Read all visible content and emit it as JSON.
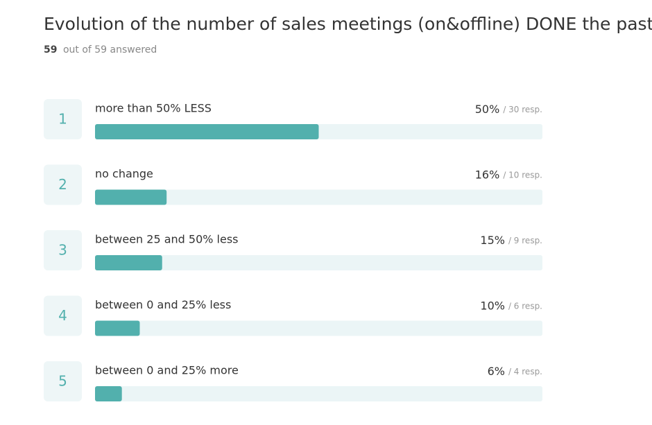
{
  "chart_data": {
    "type": "hbar",
    "title": "Evolution of the number of sales meetings (on&offline) DONE the past week",
    "answered": "59",
    "answered_text": "out of 59 answered",
    "ranks": [
      1,
      2,
      3,
      4,
      5
    ],
    "categories": [
      "more than 50% LESS",
      "no change",
      "between 25 and 50% less",
      "between 0 and 25% less",
      "between 0 and 25% more"
    ],
    "values": [
      50,
      16,
      15,
      10,
      6
    ],
    "value_labels": [
      "50%",
      "16%",
      "15%",
      "10%",
      "6%"
    ],
    "responses": [
      30,
      10,
      9,
      6,
      4
    ],
    "response_labels": [
      "/ 30 resp.",
      "/ 10 resp.",
      "/ 9 resp.",
      "/ 6 resp.",
      "/ 4 resp."
    ],
    "xlim": [
      0,
      100
    ],
    "color": "#52b0ad"
  }
}
